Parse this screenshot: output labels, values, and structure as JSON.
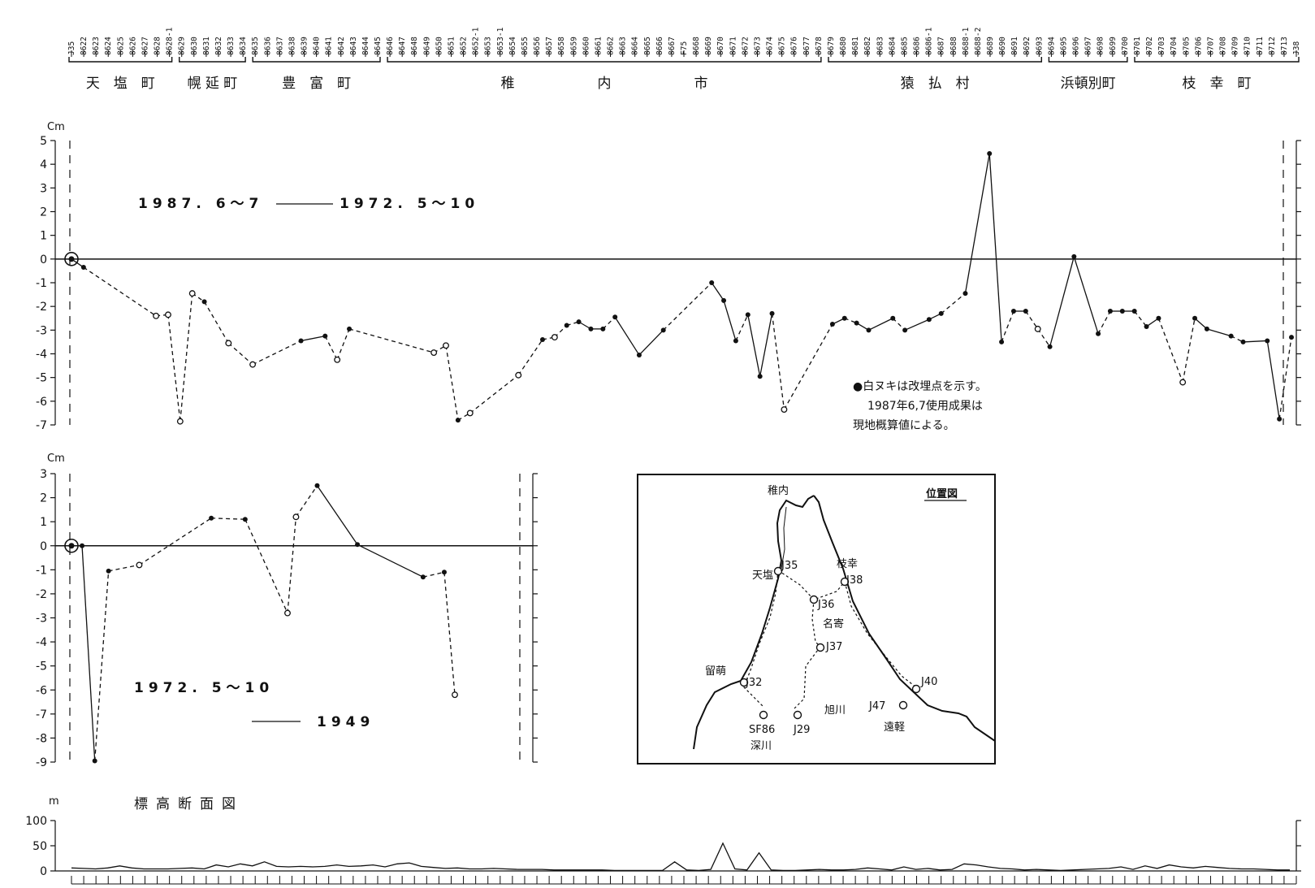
{
  "benchmarks": [
    "J35",
    "8622",
    "8623",
    "8624",
    "8625",
    "8626",
    "8627",
    "8628",
    "8628-1",
    "8629",
    "8630",
    "8631",
    "8632",
    "8633",
    "8634",
    "8635",
    "8636",
    "8637",
    "8638",
    "8639",
    "8640",
    "8641",
    "8642",
    "8643",
    "8644",
    "8645",
    "8646",
    "8647",
    "8648",
    "8649",
    "8650",
    "8651",
    "8652",
    "8652-1",
    "8653",
    "8653-1",
    "8654",
    "8655",
    "8656",
    "8657",
    "8658",
    "8659",
    "8660",
    "8661",
    "8662",
    "8663",
    "8664",
    "8665",
    "8666",
    "8667",
    "F75",
    "8668",
    "8669",
    "8670",
    "8671",
    "8672",
    "8673",
    "8674",
    "8675",
    "8676",
    "8677",
    "8678",
    "8679",
    "8680",
    "8681",
    "8682",
    "8683",
    "8684",
    "8685",
    "8686",
    "8686-1",
    "8687",
    "8688",
    "8688-1",
    "8688-2",
    "8689",
    "8690",
    "8691",
    "8692",
    "8693",
    "8694",
    "8695",
    "8696",
    "8697",
    "8698",
    "8699",
    "8700",
    "8701",
    "8702",
    "8703",
    "8704",
    "8705",
    "8706",
    "8707",
    "8708",
    "8709",
    "8710",
    "8711",
    "8712",
    "8713",
    "J38"
  ],
  "municipalities": [
    {
      "name": "天　塩　町",
      "from": 0,
      "to": 8
    },
    {
      "name": "幌 延 町",
      "from": 9,
      "to": 14
    },
    {
      "name": "豊　富　町",
      "from": 15,
      "to": 25
    },
    {
      "name": "稚　　　　　　内　　　　　　市",
      "from": 26,
      "to": 61
    },
    {
      "name": "猿　払　村",
      "from": 62,
      "to": 79
    },
    {
      "name": "浜頓別町",
      "from": 80,
      "to": 86
    },
    {
      "name": "枝　幸　町",
      "from": 87,
      "to": 100
    }
  ],
  "legend": {
    "top": {
      "a": "1987. 6～7",
      "b": "1972. 5～10"
    },
    "mid": {
      "a": "1972. 5～10",
      "b": "1949"
    }
  },
  "note_lines": [
    "●白ヌキは改埋点を示す。",
    "1987年6,7使用成果は",
    "現地概算値による。"
  ],
  "map": {
    "title": "位置図",
    "labels": [
      "稚内",
      "J35",
      "天塩",
      "枝幸",
      "J38",
      "J36",
      "名寄",
      "J37",
      "留萌",
      "J32",
      "J40",
      "J47",
      "旭川",
      "SF86",
      "J29",
      "遠軽",
      "深川"
    ]
  },
  "elevation_title": "標高断面図",
  "chart_data": [
    {
      "type": "line",
      "ylabel": "Cm",
      "ylim": [
        -7,
        5
      ],
      "yticks": [
        5,
        4,
        3,
        2,
        1,
        0,
        -1,
        -2,
        -3,
        -4,
        -5,
        -6,
        -7
      ],
      "x_range": [
        0,
        100
      ],
      "series": [
        {
          "name": "1987. 6～7 ── 1972. 5～10",
          "points": [
            [
              0,
              0,
              "c"
            ],
            [
              1,
              -0.35,
              "f"
            ],
            [
              7,
              -2.4,
              "o"
            ],
            [
              8,
              -2.35,
              "o"
            ],
            [
              9,
              -6.85,
              "o"
            ],
            [
              10,
              -1.45,
              "o"
            ],
            [
              11,
              -1.8,
              "f"
            ],
            [
              13,
              -3.55,
              "o"
            ],
            [
              15,
              -4.45,
              "o"
            ],
            [
              19,
              -3.45,
              "f"
            ],
            [
              21,
              -3.25,
              "f"
            ],
            [
              22,
              -4.25,
              "o"
            ],
            [
              23,
              -2.95,
              "f"
            ],
            [
              30,
              -3.95,
              "o"
            ],
            [
              31,
              -3.65,
              "o"
            ],
            [
              32,
              -6.8,
              "f"
            ],
            [
              33,
              -6.5,
              "o"
            ],
            [
              37,
              -4.9,
              "o"
            ],
            [
              39,
              -3.4,
              "f"
            ],
            [
              40,
              -3.3,
              "o"
            ],
            [
              41,
              -2.8,
              "f"
            ],
            [
              42,
              -2.65,
              "f"
            ],
            [
              43,
              -2.95,
              "f"
            ],
            [
              44,
              -2.95,
              "f"
            ],
            [
              45,
              -2.45,
              "f"
            ],
            [
              47,
              -4.05,
              "f"
            ],
            [
              49,
              -3.0,
              "f"
            ],
            [
              53,
              -1.0,
              "f"
            ],
            [
              54,
              -1.75,
              "f"
            ],
            [
              55,
              -3.45,
              "f"
            ],
            [
              56,
              -2.35,
              "f"
            ],
            [
              57,
              -4.95,
              "f"
            ],
            [
              58,
              -2.3,
              "f"
            ],
            [
              59,
              -6.35,
              "o"
            ],
            [
              63,
              -2.75,
              "f"
            ],
            [
              64,
              -2.5,
              "f"
            ],
            [
              65,
              -2.7,
              "f"
            ],
            [
              66,
              -3.0,
              "f"
            ],
            [
              68,
              -2.5,
              "f"
            ],
            [
              69,
              -3.0,
              "f"
            ],
            [
              71,
              -2.55,
              "f"
            ],
            [
              72,
              -2.3,
              "f"
            ],
            [
              74,
              -1.45,
              "f"
            ],
            [
              76,
              4.45,
              "f"
            ],
            [
              77,
              -3.5,
              "f"
            ],
            [
              78,
              -2.2,
              "f"
            ],
            [
              79,
              -2.2,
              "f"
            ],
            [
              80,
              -2.95,
              "o"
            ],
            [
              81,
              -3.7,
              "f"
            ],
            [
              83,
              0.1,
              "f"
            ],
            [
              85,
              -3.15,
              "f"
            ],
            [
              86,
              -2.2,
              "f"
            ],
            [
              87,
              -2.2,
              "f"
            ],
            [
              88,
              -2.2,
              "f"
            ],
            [
              89,
              -2.85,
              "f"
            ],
            [
              90,
              -2.5,
              "f"
            ],
            [
              92,
              -5.2,
              "o"
            ],
            [
              93,
              -2.5,
              "f"
            ],
            [
              94,
              -2.95,
              "f"
            ],
            [
              96,
              -3.25,
              "f"
            ],
            [
              97,
              -3.5,
              "f"
            ],
            [
              99,
              -3.45,
              "f"
            ],
            [
              100,
              -6.75,
              "f"
            ],
            [
              101,
              -3.3,
              "f"
            ]
          ]
        }
      ]
    },
    {
      "type": "line",
      "ylabel": "Cm",
      "ylim": [
        -9,
        3
      ],
      "yticks": [
        3,
        2,
        1,
        0,
        -1,
        -2,
        -3,
        -4,
        -5,
        -6,
        -7,
        -8,
        -9
      ],
      "x_range": [
        0,
        20
      ],
      "series": [
        {
          "name": "1972. 5～10 ── 1949",
          "points": [
            [
              0,
              0,
              "c"
            ],
            [
              0.5,
              0,
              "f"
            ],
            [
              1.1,
              -8.95,
              "f"
            ],
            [
              1.75,
              -1.05,
              "f"
            ],
            [
              3.2,
              -0.8,
              "o"
            ],
            [
              6.6,
              1.15,
              "f"
            ],
            [
              8.2,
              1.1,
              "f"
            ],
            [
              10.2,
              -2.8,
              "o"
            ],
            [
              10.6,
              1.2,
              "o"
            ],
            [
              11.6,
              2.5,
              "f"
            ],
            [
              13.5,
              0.05,
              "f"
            ],
            [
              16.6,
              -1.3,
              "f"
            ],
            [
              17.6,
              -1.1,
              "f"
            ],
            [
              18.1,
              -6.2,
              "o"
            ]
          ]
        }
      ]
    },
    {
      "type": "area",
      "title": "標高断面図",
      "ylabel": "m",
      "ylim": [
        0,
        100
      ],
      "yticks": [
        100,
        50,
        0
      ],
      "x_range": [
        0,
        101
      ],
      "series": [
        {
          "name": "",
          "x": [
            0,
            1,
            2,
            3,
            4,
            5,
            6,
            7,
            8,
            9,
            10,
            11,
            12,
            13,
            14,
            15,
            16,
            17,
            18,
            19,
            20,
            21,
            22,
            23,
            24,
            25,
            26,
            27,
            28,
            29,
            30,
            31,
            32,
            33,
            34,
            35,
            36,
            37,
            38,
            39,
            40,
            41,
            42,
            43,
            44,
            45,
            46,
            47,
            48,
            49,
            50,
            51,
            52,
            53,
            54,
            55,
            56,
            57,
            58,
            59,
            60,
            61,
            62,
            63,
            64,
            65,
            66,
            67,
            68,
            69,
            70,
            71,
            72,
            73,
            74,
            75,
            76,
            77,
            78,
            79,
            80,
            81,
            82,
            83,
            84,
            85,
            86,
            87,
            88,
            89,
            90,
            91,
            92,
            93,
            94,
            95,
            96,
            97,
            98,
            99,
            100,
            101
          ],
          "values": [
            6,
            5,
            4,
            6,
            10,
            6,
            4,
            4,
            4,
            5,
            6,
            4,
            12,
            8,
            14,
            10,
            18,
            9,
            8,
            9,
            8,
            9,
            12,
            9,
            10,
            12,
            8,
            14,
            16,
            9,
            7,
            5,
            6,
            4,
            4,
            5,
            4,
            3,
            3,
            3,
            2,
            2,
            2,
            2,
            2,
            1,
            1,
            1,
            1,
            1,
            18,
            2,
            1,
            3,
            55,
            4,
            2,
            36,
            2,
            1,
            1,
            2,
            3,
            2,
            2,
            3,
            6,
            4,
            2,
            8,
            3,
            5,
            2,
            3,
            14,
            12,
            8,
            5,
            4,
            2,
            3,
            2,
            1,
            2,
            3,
            4,
            5,
            8,
            3,
            10,
            5,
            12,
            8,
            6,
            9,
            7,
            5,
            4,
            4,
            3,
            2,
            2
          ]
        }
      ]
    }
  ]
}
